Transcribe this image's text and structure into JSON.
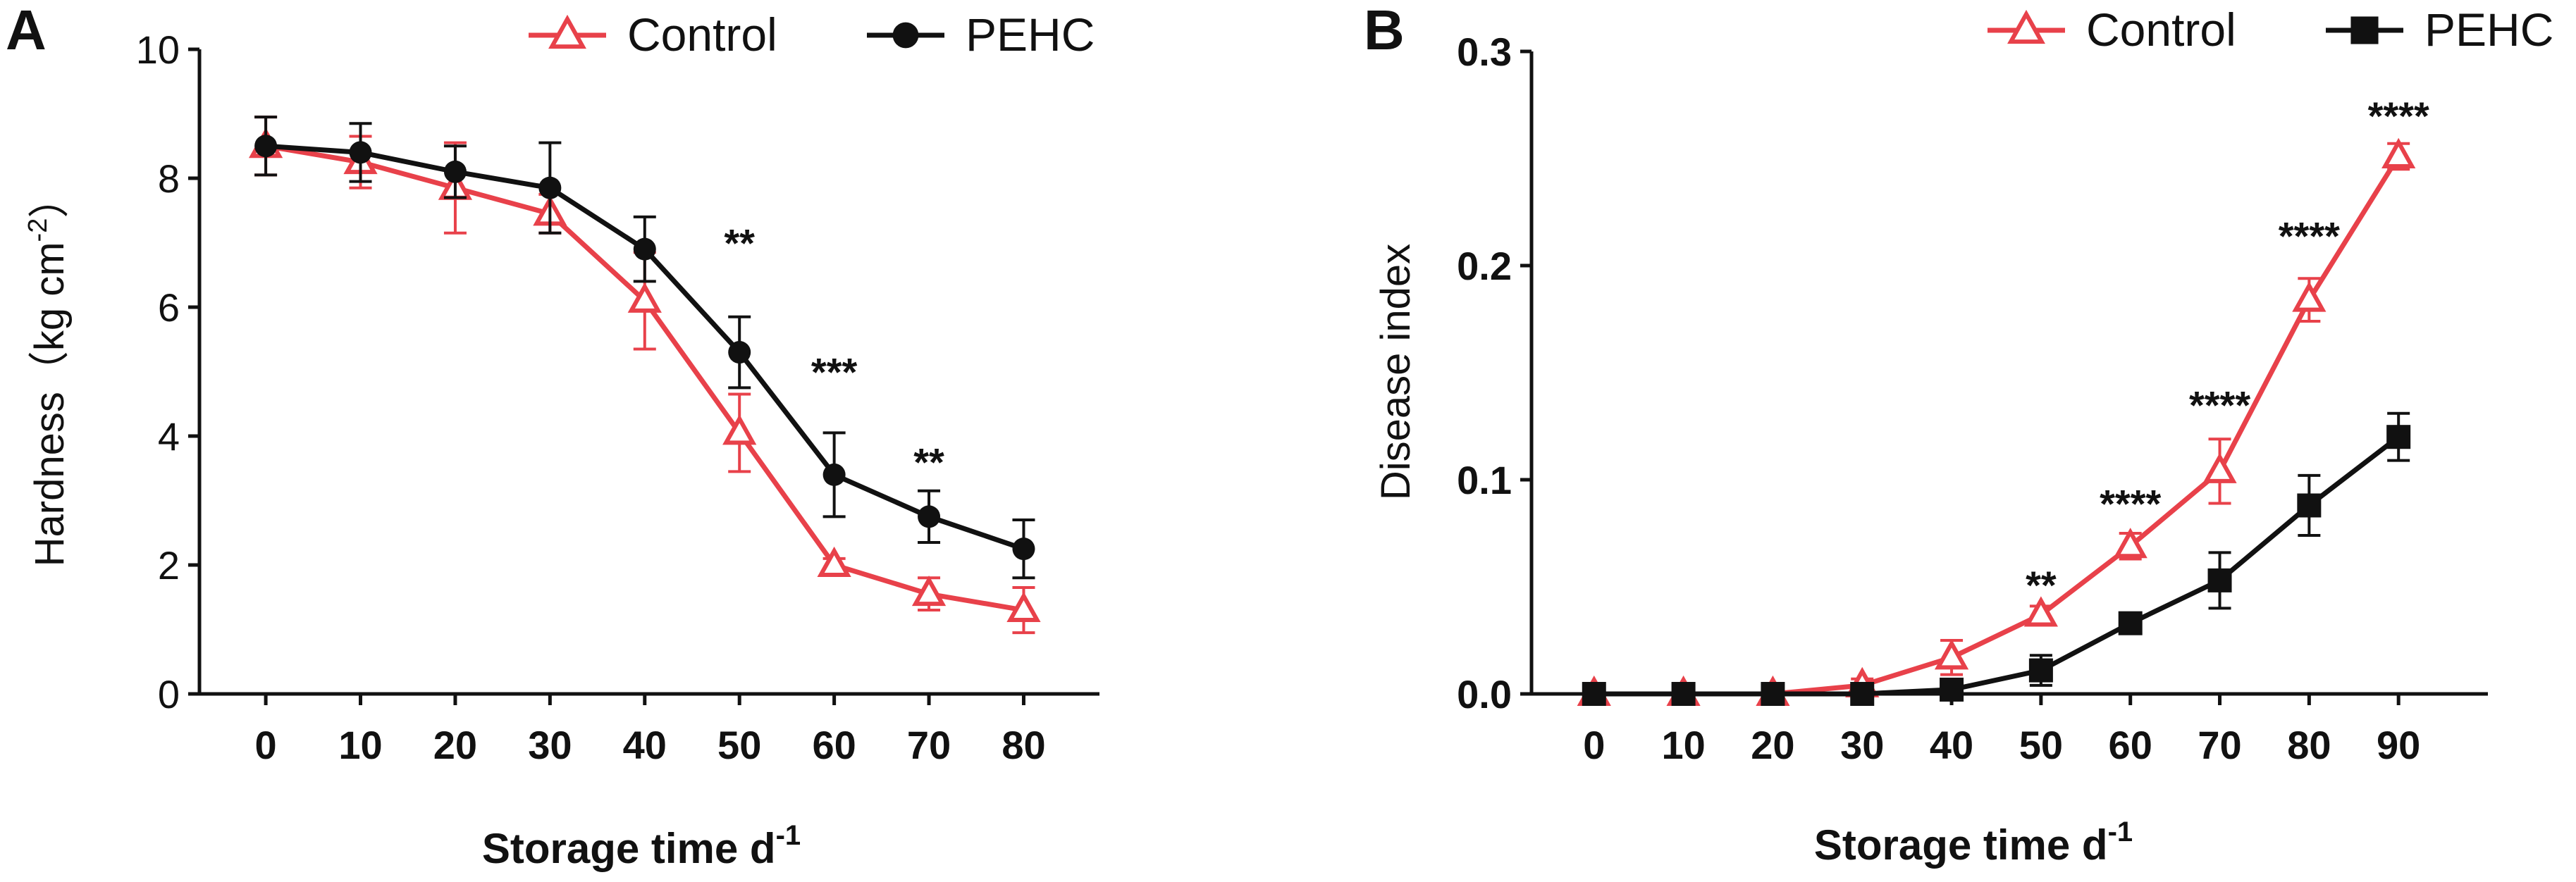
{
  "chart_data": [
    {
      "panel": "A",
      "type": "line",
      "xlabel": "Storage time d",
      "xlabel_sup": "-1",
      "ylabel": "Hardness（kg cm",
      "ylabel_sup": "-2",
      "ylabel_end": "）",
      "x": [
        0,
        10,
        20,
        30,
        40,
        50,
        60,
        70,
        80
      ],
      "xlim": [
        -7,
        88
      ],
      "ylim": [
        0,
        10
      ],
      "yticks": [
        0,
        2,
        4,
        6,
        8,
        10
      ],
      "grid": false,
      "legend": "top",
      "series": [
        {
          "name": "Control",
          "color": "#e8414a",
          "marker": "open-triangle",
          "values": [
            8.5,
            8.25,
            7.85,
            7.45,
            6.1,
            4.05,
            2.0,
            1.55,
            1.3
          ],
          "errors": [
            0.45,
            0.4,
            0.7,
            0.3,
            0.75,
            0.6,
            0.1,
            0.25,
            0.35
          ]
        },
        {
          "name": "PEHC",
          "color": "#111111",
          "marker": "filled-circle",
          "values": [
            8.5,
            8.4,
            8.1,
            7.85,
            6.9,
            5.3,
            3.4,
            2.75,
            2.25
          ],
          "errors": [
            0.45,
            0.45,
            0.4,
            0.7,
            0.5,
            0.55,
            0.65,
            0.4,
            0.45
          ]
        }
      ],
      "annotations": [
        {
          "x": 50,
          "y": 7.0,
          "text": "**"
        },
        {
          "x": 60,
          "y": 5.0,
          "text": "***"
        },
        {
          "x": 70,
          "y": 3.6,
          "text": "**"
        }
      ]
    },
    {
      "panel": "B",
      "type": "line",
      "xlabel": "Storage time d",
      "xlabel_sup": "-1",
      "ylabel": "Disease index",
      "x": [
        0,
        10,
        20,
        30,
        40,
        50,
        60,
        70,
        80,
        90
      ],
      "xlim": [
        -7,
        100
      ],
      "ylim": [
        0,
        0.3
      ],
      "yticks": [
        0.0,
        0.1,
        0.2,
        0.3
      ],
      "ytick_labels": [
        "0.0",
        "0.1",
        "0.2",
        "0.3"
      ],
      "grid": false,
      "legend": "top-right",
      "series": [
        {
          "name": "Control",
          "color": "#e8414a",
          "marker": "open-triangle",
          "values": [
            0.0,
            0.0,
            0.0,
            0.004,
            0.017,
            0.037,
            0.069,
            0.104,
            0.184,
            0.251
          ],
          "errors": [
            0.0,
            0.0,
            0.0,
            0.003,
            0.008,
            0.004,
            0.006,
            0.015,
            0.01,
            0.006
          ]
        },
        {
          "name": "PEHC",
          "color": "#111111",
          "marker": "filled-square",
          "values": [
            0.0,
            0.0,
            0.0,
            0.0,
            0.002,
            0.011,
            0.033,
            0.053,
            0.088,
            0.12
          ],
          "errors": [
            0.0,
            0.0,
            0.0,
            0.0,
            0.002,
            0.007,
            0.004,
            0.013,
            0.014,
            0.011
          ]
        }
      ],
      "annotations": [
        {
          "x": 50,
          "y": 0.051,
          "text": "**"
        },
        {
          "x": 60,
          "y": 0.089,
          "text": "****"
        },
        {
          "x": 70,
          "y": 0.135,
          "text": "****"
        },
        {
          "x": 80,
          "y": 0.214,
          "text": "****"
        },
        {
          "x": 90,
          "y": 0.27,
          "text": "****"
        }
      ]
    }
  ]
}
